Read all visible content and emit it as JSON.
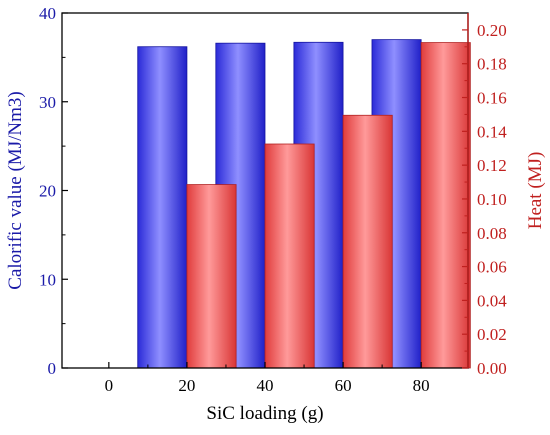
{
  "chart_data": {
    "type": "bar",
    "xlabel": "SiC loading (g)",
    "ylabel_left": "Calorific value (MJ/Nm3)",
    "ylabel_right": "Heat (MJ)",
    "categories": [
      "0",
      "20",
      "40",
      "60",
      "80"
    ],
    "ylim_left": [
      0,
      40
    ],
    "ylim_right": [
      0,
      0.21
    ],
    "yticks_left": [
      "0",
      "10",
      "20",
      "30",
      "40"
    ],
    "yticks_right": [
      "0.00",
      "0.02",
      "0.04",
      "0.06",
      "0.08",
      "0.10",
      "0.12",
      "0.14",
      "0.16",
      "0.18",
      "0.20"
    ],
    "series": [
      {
        "axis": "left",
        "color": "#3b3bff",
        "values": [
          0,
          36.2,
          36.6,
          36.7,
          37.0
        ]
      },
      {
        "axis": "right",
        "color": "#ff5a5a",
        "values": [
          0,
          0.1085,
          0.1325,
          0.1495,
          0.1925
        ]
      }
    ],
    "colors": {
      "left_axis": "#1a1aa8",
      "right_axis": "#c0201f",
      "frame": "#000000"
    },
    "grid": false,
    "legend": "none"
  }
}
